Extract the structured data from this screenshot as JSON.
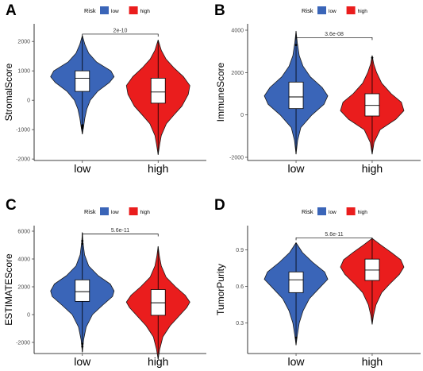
{
  "legend": {
    "title": "Risk",
    "items": [
      {
        "label": "low",
        "color": "#3a65b8"
      },
      {
        "label": "high",
        "color": "#ea1d1d"
      }
    ]
  },
  "chart_data": [
    {
      "panel": "A",
      "type": "violin",
      "ylabel": "StromalScore",
      "categories": [
        "low",
        "high"
      ],
      "ylim": [
        -2050,
        2600
      ],
      "yticks": [
        -2000,
        -1000,
        0,
        1000,
        2000
      ],
      "ytick_labels": [
        "-2000",
        "-1000",
        "0",
        "1000",
        "2000"
      ],
      "grid": false,
      "legend_position": "top",
      "pvalue": {
        "label": "2e-10",
        "y": 2250
      },
      "groups": [
        {
          "name": "low",
          "color": "#3a65b8",
          "min": -1150,
          "max": 2200,
          "profile": [
            [
              -1150,
              0
            ],
            [
              -900,
              0.04
            ],
            [
              -600,
              0.08
            ],
            [
              -300,
              0.14
            ],
            [
              0,
              0.25
            ],
            [
              300,
              0.48
            ],
            [
              600,
              0.85
            ],
            [
              800,
              1.0
            ],
            [
              1000,
              0.9
            ],
            [
              1300,
              0.45
            ],
            [
              1600,
              0.2
            ],
            [
              1900,
              0.08
            ],
            [
              2200,
              0
            ]
          ],
          "q1": 300,
          "median": 750,
          "q3": 1000,
          "outliers": [
            -850,
            -900,
            -950
          ]
        },
        {
          "name": "high",
          "color": "#ea1d1d",
          "min": -1850,
          "max": 2050,
          "profile": [
            [
              -1850,
              0
            ],
            [
              -1500,
              0.05
            ],
            [
              -1200,
              0.1
            ],
            [
              -800,
              0.26
            ],
            [
              -500,
              0.5
            ],
            [
              -200,
              0.75
            ],
            [
              200,
              0.95
            ],
            [
              500,
              1.0
            ],
            [
              800,
              0.8
            ],
            [
              1100,
              0.5
            ],
            [
              1400,
              0.25
            ],
            [
              1700,
              0.1
            ],
            [
              2050,
              0
            ]
          ],
          "q1": -100,
          "median": 280,
          "q3": 750,
          "outliers": []
        }
      ]
    },
    {
      "panel": "B",
      "type": "violin",
      "ylabel": "ImmuneScore",
      "categories": [
        "low",
        "high"
      ],
      "ylim": [
        -2150,
        4300
      ],
      "yticks": [
        -2000,
        0,
        2000,
        4000
      ],
      "ytick_labels": [
        "-2000",
        "0",
        "2000",
        "4000"
      ],
      "grid": false,
      "legend_position": "top",
      "pvalue": {
        "label": "3.6e-08",
        "y": 3650
      },
      "groups": [
        {
          "name": "low",
          "color": "#3a65b8",
          "min": -1850,
          "max": 3950,
          "profile": [
            [
              -1850,
              0
            ],
            [
              -1200,
              0.05
            ],
            [
              -600,
              0.15
            ],
            [
              0,
              0.5
            ],
            [
              500,
              0.88
            ],
            [
              900,
              1.0
            ],
            [
              1300,
              0.82
            ],
            [
              1800,
              0.45
            ],
            [
              2300,
              0.22
            ],
            [
              2800,
              0.1
            ],
            [
              3400,
              0.04
            ],
            [
              3950,
              0
            ]
          ],
          "q1": 300,
          "median": 850,
          "q3": 1550,
          "outliers": [
            3300
          ]
        },
        {
          "name": "high",
          "color": "#ea1d1d",
          "min": -1850,
          "max": 2800,
          "profile": [
            [
              -1850,
              0
            ],
            [
              -1300,
              0.06
            ],
            [
              -700,
              0.25
            ],
            [
              -200,
              0.75
            ],
            [
              200,
              1.0
            ],
            [
              600,
              0.92
            ],
            [
              1000,
              0.6
            ],
            [
              1500,
              0.3
            ],
            [
              2000,
              0.14
            ],
            [
              2400,
              0.05
            ],
            [
              2800,
              0
            ]
          ],
          "q1": -50,
          "median": 450,
          "q3": 1000,
          "outliers": [
            2700
          ]
        }
      ]
    },
    {
      "panel": "C",
      "type": "violin",
      "ylabel": "ESTIMATEScore",
      "categories": [
        "low",
        "high"
      ],
      "ylim": [
        -2800,
        6400
      ],
      "yticks": [
        -2000,
        0,
        2000,
        4000,
        6000
      ],
      "ytick_labels": [
        "-2000",
        "0",
        "2000",
        "4000",
        "6000"
      ],
      "grid": false,
      "legend_position": "top",
      "pvalue": {
        "label": "5.6e-11",
        "y": 5800
      },
      "groups": [
        {
          "name": "low",
          "color": "#3a65b8",
          "min": -2700,
          "max": 5900,
          "profile": [
            [
              -2700,
              0
            ],
            [
              -1800,
              0.04
            ],
            [
              -900,
              0.12
            ],
            [
              0,
              0.32
            ],
            [
              700,
              0.65
            ],
            [
              1300,
              0.95
            ],
            [
              1700,
              1.0
            ],
            [
              2200,
              0.88
            ],
            [
              2800,
              0.5
            ],
            [
              3500,
              0.2
            ],
            [
              4300,
              0.07
            ],
            [
              5200,
              0.02
            ],
            [
              5900,
              0
            ]
          ],
          "q1": 950,
          "median": 1650,
          "q3": 2500,
          "outliers": [
            5300,
            5100,
            -2100,
            -2300
          ]
        },
        {
          "name": "high",
          "color": "#ea1d1d",
          "min": -3200,
          "max": 4900,
          "profile": [
            [
              -3200,
              0
            ],
            [
              -2500,
              0.05
            ],
            [
              -1600,
              0.15
            ],
            [
              -800,
              0.38
            ],
            [
              0,
              0.7
            ],
            [
              500,
              0.9
            ],
            [
              900,
              1.0
            ],
            [
              1400,
              0.85
            ],
            [
              2000,
              0.55
            ],
            [
              2700,
              0.25
            ],
            [
              3500,
              0.1
            ],
            [
              4200,
              0.04
            ],
            [
              4900,
              0
            ]
          ],
          "q1": -50,
          "median": 850,
          "q3": 1800,
          "outliers": []
        }
      ]
    },
    {
      "panel": "D",
      "type": "violin",
      "ylabel": "TumorPurity",
      "categories": [
        "low",
        "high"
      ],
      "ylim": [
        0.05,
        1.1
      ],
      "yticks": [
        0.3,
        0.6,
        0.9
      ],
      "ytick_labels": [
        "0.3",
        "0.6",
        "0.9"
      ],
      "grid": false,
      "legend_position": "top",
      "pvalue": {
        "label": "5.6e-11",
        "y": 1.0
      },
      "groups": [
        {
          "name": "low",
          "color": "#3a65b8",
          "min": 0.12,
          "max": 0.96,
          "profile": [
            [
              0.12,
              0
            ],
            [
              0.2,
              0.04
            ],
            [
              0.3,
              0.1
            ],
            [
              0.4,
              0.22
            ],
            [
              0.5,
              0.42
            ],
            [
              0.6,
              0.78
            ],
            [
              0.66,
              1.0
            ],
            [
              0.72,
              0.9
            ],
            [
              0.8,
              0.52
            ],
            [
              0.88,
              0.2
            ],
            [
              0.96,
              0
            ]
          ],
          "q1": 0.55,
          "median": 0.655,
          "q3": 0.72,
          "outliers": [
            0.18
          ]
        },
        {
          "name": "high",
          "color": "#ea1d1d",
          "min": 0.29,
          "max": 0.995,
          "profile": [
            [
              0.29,
              0
            ],
            [
              0.36,
              0.04
            ],
            [
              0.45,
              0.12
            ],
            [
              0.55,
              0.3
            ],
            [
              0.62,
              0.55
            ],
            [
              0.7,
              0.86
            ],
            [
              0.76,
              1.0
            ],
            [
              0.82,
              0.9
            ],
            [
              0.88,
              0.6
            ],
            [
              0.94,
              0.28
            ],
            [
              0.995,
              0
            ]
          ],
          "q1": 0.65,
          "median": 0.735,
          "q3": 0.825,
          "outliers": []
        }
      ]
    }
  ]
}
